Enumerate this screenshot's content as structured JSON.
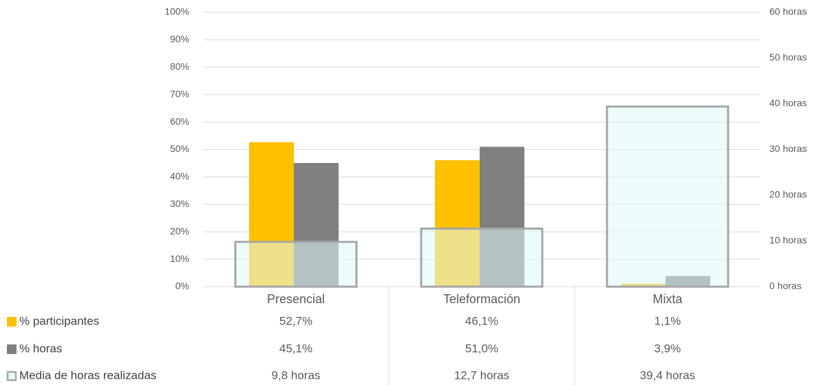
{
  "chart_data": {
    "type": "bar",
    "categories": [
      "Presencial",
      "Teleformación",
      "Mixta"
    ],
    "series": [
      {
        "name": "% participantes",
        "color": "#ffc000",
        "values": [
          52.7,
          46.1,
          1.1
        ],
        "value_labels": [
          "52,7%",
          "46,1%",
          "1,1%"
        ]
      },
      {
        "name": "% horas",
        "color": "#808080",
        "values": [
          45.1,
          51.0,
          3.9
        ],
        "value_labels": [
          "45,1%",
          "51,0%",
          "3,9%"
        ]
      },
      {
        "name": "Media de horas realizadas",
        "color": "#a6a6a6",
        "axis": "y2",
        "values": [
          9.8,
          12.7,
          39.4
        ],
        "value_labels": [
          "9,8 horas",
          "12,7 horas",
          "39,4 horas"
        ]
      }
    ],
    "ylim": [
      0,
      100
    ],
    "yticks": [
      {
        "value": 0,
        "label": "0%"
      },
      {
        "value": 10,
        "label": "10%"
      },
      {
        "value": 20,
        "label": "20%"
      },
      {
        "value": 30,
        "label": "30%"
      },
      {
        "value": 40,
        "label": "40%"
      },
      {
        "value": 50,
        "label": "50%"
      },
      {
        "value": 60,
        "label": "60%"
      },
      {
        "value": 70,
        "label": "70%"
      },
      {
        "value": 80,
        "label": "80%"
      },
      {
        "value": 90,
        "label": "90%"
      },
      {
        "value": 100,
        "label": "100%"
      }
    ],
    "y2lim": [
      0,
      60
    ],
    "y2ticks": [
      {
        "value": 0,
        "label": "0 horas"
      },
      {
        "value": 10,
        "label": "10 horas"
      },
      {
        "value": 20,
        "label": "20 horas"
      },
      {
        "value": 30,
        "label": "30 horas"
      },
      {
        "value": 40,
        "label": "40 horas"
      },
      {
        "value": 50,
        "label": "50 horas"
      },
      {
        "value": 60,
        "label": "60 horas"
      }
    ],
    "grid": true
  }
}
